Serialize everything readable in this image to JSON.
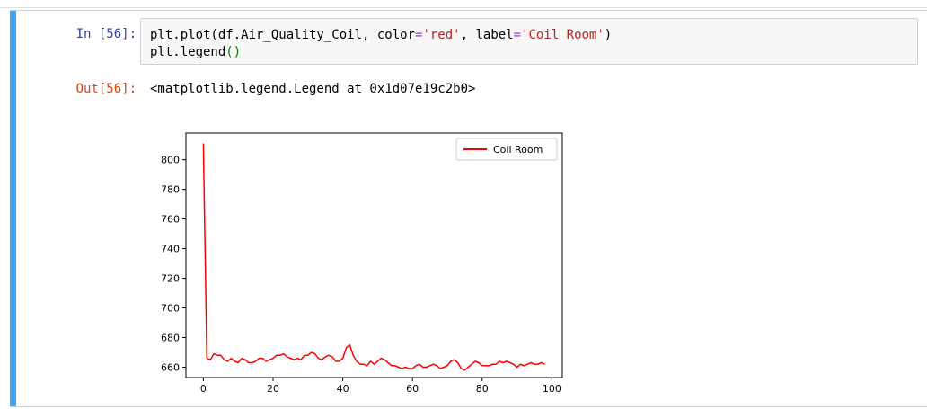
{
  "cell": {
    "in_prompt": "In [56]:",
    "out_prompt": "Out[56]:",
    "code_lines": [
      [
        {
          "t": "plt.plot(df.Air_Quality_Coil, color",
          "c": ""
        },
        {
          "t": "=",
          "c": "op"
        },
        {
          "t": "'red'",
          "c": "str"
        },
        {
          "t": ", label",
          "c": ""
        },
        {
          "t": "=",
          "c": "op"
        },
        {
          "t": "'Coil Room'",
          "c": "str"
        },
        {
          "t": ")",
          "c": ""
        }
      ],
      [
        {
          "t": "plt.legend",
          "c": ""
        },
        {
          "t": "()",
          "c": "paren"
        }
      ]
    ],
    "output_text": "<matplotlib.legend.Legend at 0x1d07e19c2b0>"
  },
  "colors": {
    "cell_bar": "#42a5f5",
    "in_prompt": "#303f9f",
    "out_prompt": "#d84315",
    "line": "#ff0000"
  },
  "chart_data": {
    "type": "line",
    "title": "",
    "xlabel": "",
    "ylabel": "",
    "xlim": [
      -5,
      103
    ],
    "ylim": [
      653,
      818
    ],
    "xticks": [
      0,
      20,
      40,
      60,
      80,
      100
    ],
    "yticks": [
      660,
      680,
      700,
      720,
      740,
      760,
      780,
      800
    ],
    "legend": {
      "position": "upper right",
      "entries": [
        "Coil Room"
      ]
    },
    "grid": false,
    "series": [
      {
        "name": "Coil Room",
        "color": "#ff0000",
        "x": [
          0,
          1,
          2,
          3,
          4,
          5,
          6,
          7,
          8,
          9,
          10,
          11,
          12,
          13,
          14,
          15,
          16,
          17,
          18,
          19,
          20,
          21,
          22,
          23,
          24,
          25,
          26,
          27,
          28,
          29,
          30,
          31,
          32,
          33,
          34,
          35,
          36,
          37,
          38,
          39,
          40,
          41,
          42,
          43,
          44,
          45,
          46,
          47,
          48,
          49,
          50,
          51,
          52,
          53,
          54,
          55,
          56,
          57,
          58,
          59,
          60,
          61,
          62,
          63,
          64,
          65,
          66,
          67,
          68,
          69,
          70,
          71,
          72,
          73,
          74,
          75,
          76,
          77,
          78,
          79,
          80,
          81,
          82,
          83,
          84,
          85,
          86,
          87,
          88,
          89,
          90,
          91,
          92,
          93,
          94,
          95,
          96,
          97,
          98
        ],
        "values": [
          811,
          666,
          665,
          669,
          668,
          668,
          665,
          664,
          666,
          664,
          663,
          666,
          665,
          663,
          663,
          664,
          666,
          666,
          664,
          665,
          666,
          668,
          668,
          669,
          667,
          666,
          665,
          666,
          665,
          668,
          668,
          670,
          669,
          666,
          665,
          667,
          668,
          667,
          664,
          664,
          666,
          673,
          675,
          668,
          664,
          662,
          662,
          661,
          664,
          662,
          664,
          666,
          665,
          663,
          661,
          661,
          660,
          659,
          660,
          659,
          659,
          661,
          662,
          660,
          660,
          661,
          662,
          661,
          659,
          660,
          661,
          664,
          665,
          663,
          659,
          658,
          660,
          662,
          664,
          663,
          661,
          661,
          661,
          662,
          662,
          664,
          663,
          664,
          663,
          662,
          660,
          662,
          661,
          662,
          663,
          662,
          662,
          663,
          662
        ]
      }
    ]
  }
}
